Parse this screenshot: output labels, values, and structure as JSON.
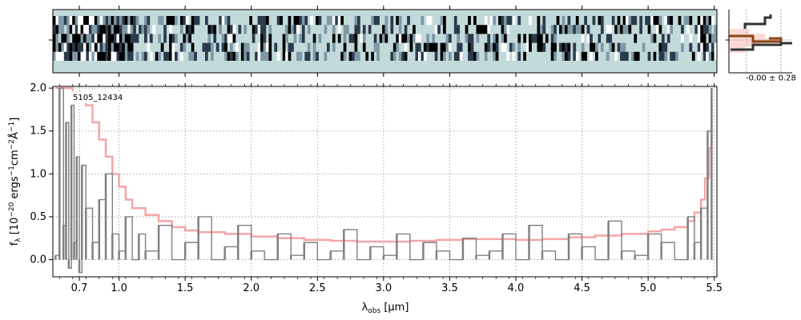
{
  "chart_data": [
    {
      "type": "heatmap",
      "panel": "2d-spectrum",
      "description_values": "sky-subtracted 2D spectrum, 5 spatial rows of pixel flux",
      "colormap": [
        "#000000",
        "#2b3a4a",
        "#7f98a6",
        "#c2dada",
        "#ffffff"
      ],
      "background_color": "#c2dada",
      "rows": 5,
      "columns": 240
    },
    {
      "type": "line",
      "panel": "spatial-profile",
      "annotation": "-0.00 ± 0.28",
      "series_colors": [
        "#333333",
        "#8b4513",
        "#fa8072"
      ]
    },
    {
      "type": "line",
      "panel": "1d-spectrum",
      "object_label": "5105_12434",
      "xlabel": "λ_obs [μm]",
      "ylabel": "f_λ [10^-20 ergs^-1 cm^-2 Å^-1]",
      "xlim": [
        0.5,
        5.52
      ],
      "ylim": [
        -0.2,
        2.02
      ],
      "x_ticks": [
        "0.7",
        "1.0",
        "1.5",
        "2.0",
        "2.5",
        "3.0",
        "3.5",
        "4.0",
        "4.5",
        "5.0",
        "5.5"
      ],
      "y_ticks": [
        "0.0",
        "0.5",
        "1.0",
        "1.5",
        "2.0"
      ],
      "grid": true,
      "series": [
        {
          "role": "flux",
          "color": "#808080",
          "x": [
            0.52,
            0.55,
            0.58,
            0.6,
            0.62,
            0.64,
            0.66,
            0.68,
            0.7,
            0.72,
            0.75,
            0.8,
            0.85,
            0.9,
            0.95,
            1.0,
            1.05,
            1.1,
            1.15,
            1.2,
            1.3,
            1.4,
            1.5,
            1.6,
            1.7,
            1.8,
            1.9,
            2.0,
            2.1,
            2.2,
            2.3,
            2.4,
            2.5,
            2.6,
            2.7,
            2.8,
            2.9,
            3.0,
            3.1,
            3.2,
            3.3,
            3.4,
            3.5,
            3.6,
            3.7,
            3.8,
            3.9,
            4.0,
            4.1,
            4.2,
            4.3,
            4.4,
            4.5,
            4.6,
            4.7,
            4.8,
            4.9,
            5.0,
            5.1,
            5.2,
            5.3,
            5.35,
            5.4,
            5.45,
            5.48
          ],
          "y": [
            0.05,
            2.0,
            0.4,
            1.6,
            -0.1,
            1.8,
            0.2,
            1.2,
            -0.15,
            1.1,
            0.6,
            0.2,
            0.7,
            1.0,
            0.3,
            0.1,
            0.5,
            0.0,
            0.3,
            0.1,
            0.4,
            0.0,
            0.2,
            0.5,
            0.0,
            0.15,
            0.4,
            0.1,
            0.0,
            0.3,
            0.05,
            0.2,
            0.0,
            0.1,
            0.35,
            0.0,
            0.15,
            0.05,
            0.3,
            0.0,
            0.2,
            0.1,
            0.0,
            0.25,
            0.05,
            0.1,
            0.3,
            0.0,
            0.4,
            0.1,
            0.0,
            0.3,
            0.15,
            0.0,
            0.45,
            0.1,
            0.05,
            0.3,
            0.2,
            0.0,
            0.5,
            0.2,
            0.6,
            1.5,
            2.0
          ]
        },
        {
          "role": "error",
          "color": "#f4a6a6",
          "x": [
            0.52,
            0.6,
            0.65,
            0.7,
            0.75,
            0.8,
            0.85,
            0.9,
            0.95,
            1.0,
            1.05,
            1.1,
            1.2,
            1.3,
            1.4,
            1.5,
            1.6,
            1.8,
            2.0,
            2.2,
            2.4,
            2.6,
            2.8,
            3.0,
            3.2,
            3.4,
            3.6,
            3.8,
            4.0,
            4.2,
            4.4,
            4.6,
            4.8,
            5.0,
            5.1,
            5.2,
            5.3,
            5.35,
            5.4,
            5.43,
            5.46,
            5.48
          ],
          "y": [
            2.0,
            2.0,
            1.95,
            1.9,
            1.8,
            1.6,
            1.4,
            1.2,
            1.0,
            0.85,
            0.7,
            0.6,
            0.52,
            0.45,
            0.38,
            0.34,
            0.32,
            0.3,
            0.27,
            0.25,
            0.23,
            0.22,
            0.21,
            0.21,
            0.22,
            0.23,
            0.24,
            0.24,
            0.23,
            0.24,
            0.26,
            0.28,
            0.3,
            0.33,
            0.35,
            0.38,
            0.45,
            0.55,
            0.7,
            0.95,
            1.3,
            1.9
          ]
        }
      ]
    }
  ]
}
